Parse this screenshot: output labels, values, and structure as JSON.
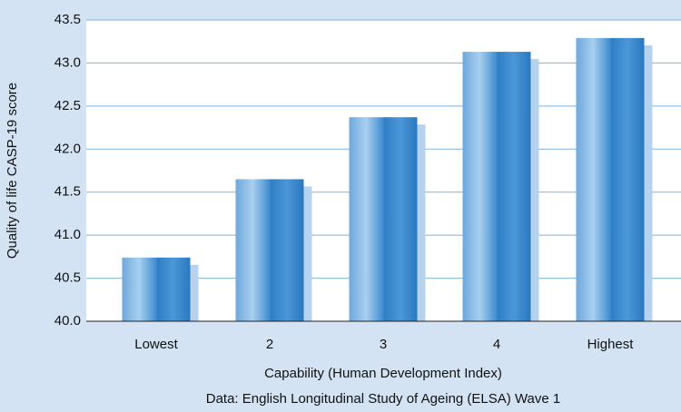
{
  "chart_data": {
    "type": "bar",
    "x_label": "Capability (Human Development Index)",
    "y_label": "Quality of life CASP-19 score",
    "caption": "Data: English Longitudinal Study of Ageing (ELSA) Wave 1",
    "categories": [
      "Lowest",
      "2",
      "3",
      "4",
      "Highest"
    ],
    "values": [
      40.74,
      41.65,
      42.37,
      43.13,
      43.29
    ],
    "color": "#3d8bd0",
    "ylim": [
      40,
      43.5
    ],
    "yticks": [
      {
        "value": 40,
        "label": "40.0"
      },
      40.5,
      {
        "value": 41,
        "label": "41.0"
      },
      41.5,
      {
        "value": 42,
        "label": "42.0"
      },
      42.5,
      {
        "value": 43,
        "label": "43.0"
      },
      43.5
    ],
    "grid": true
  }
}
